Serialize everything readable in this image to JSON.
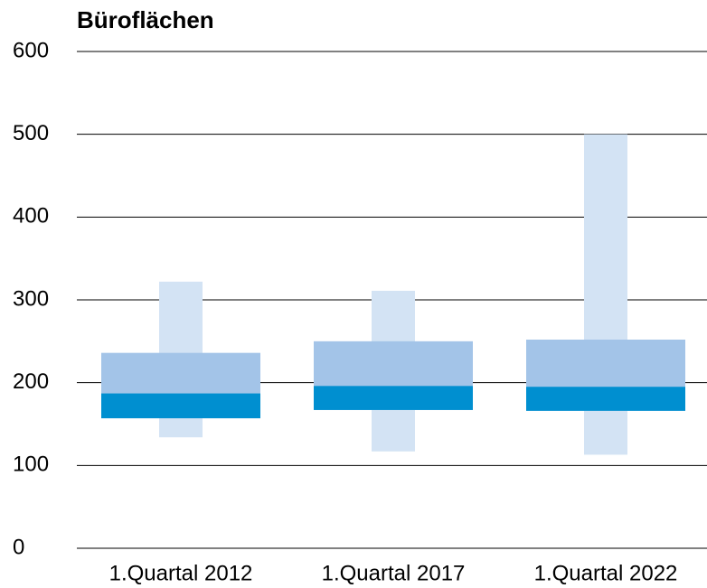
{
  "chart_data": {
    "type": "box",
    "title": "Büroflächen",
    "categories": [
      "1.Quartal 2012",
      "1.Quartal 2017",
      "1.Quartal 2022"
    ],
    "boxes": [
      {
        "min": 134,
        "q1": 157,
        "median": 187,
        "q3": 236,
        "max": 322
      },
      {
        "min": 117,
        "q1": 167,
        "median": 196,
        "q3": 250,
        "max": 311
      },
      {
        "min": 113,
        "q1": 166,
        "median": 195,
        "q3": 252,
        "max": 500
      }
    ],
    "colors": {
      "whisker": "#d3e3f4",
      "box": "#a3c4e8",
      "median_band": "#008fd0"
    },
    "ylim": [
      0,
      600
    ],
    "yticks": [
      0,
      100,
      200,
      300,
      400,
      500,
      600
    ],
    "grid": true
  }
}
